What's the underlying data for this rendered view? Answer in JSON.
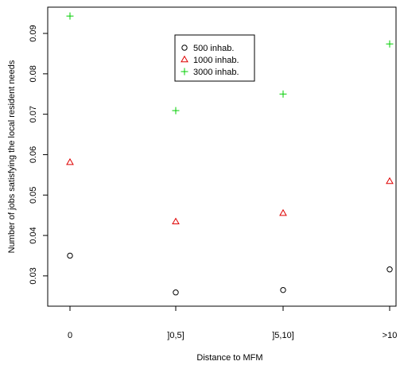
{
  "chart_data": {
    "type": "scatter",
    "xlabel": "Distance to MFM",
    "ylabel": "Number of jobs satisfying the local resident needs",
    "categories": [
      "0",
      "]0,5]",
      "]5,10]",
      ">10"
    ],
    "ylim": [
      0.0225,
      0.0965
    ],
    "yticks": [
      "0.03",
      "0.04",
      "0.05",
      "0.06",
      "0.07",
      "0.08",
      "0.09"
    ],
    "legend_position": "top-center",
    "series": [
      {
        "name": "500 inhab.",
        "marker": "circle",
        "color": "#000000",
        "values": [
          0.035,
          0.0259,
          0.0265,
          0.0316
        ]
      },
      {
        "name": "1000 inhab.",
        "marker": "triangle",
        "color": "#df0000",
        "values": [
          0.0581,
          0.0434,
          0.0455,
          0.0534
        ]
      },
      {
        "name": "3000 inhab.",
        "marker": "plus",
        "color": "#00cd00",
        "values": [
          0.0943,
          0.0709,
          0.075,
          0.0874
        ]
      }
    ]
  }
}
